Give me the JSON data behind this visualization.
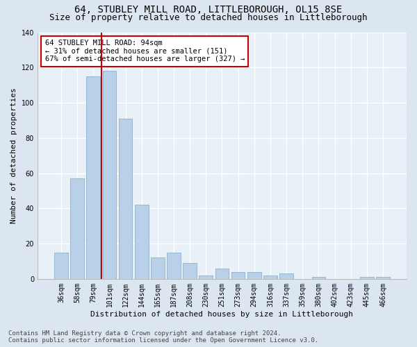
{
  "title": "64, STUBLEY MILL ROAD, LITTLEBOROUGH, OL15 8SE",
  "subtitle": "Size of property relative to detached houses in Littleborough",
  "xlabel": "Distribution of detached houses by size in Littleborough",
  "ylabel": "Number of detached properties",
  "categories": [
    "36sqm",
    "58sqm",
    "79sqm",
    "101sqm",
    "122sqm",
    "144sqm",
    "165sqm",
    "187sqm",
    "208sqm",
    "230sqm",
    "251sqm",
    "273sqm",
    "294sqm",
    "316sqm",
    "337sqm",
    "359sqm",
    "380sqm",
    "402sqm",
    "423sqm",
    "445sqm",
    "466sqm"
  ],
  "values": [
    15,
    57,
    115,
    118,
    91,
    42,
    12,
    15,
    9,
    2,
    6,
    4,
    4,
    2,
    3,
    0,
    1,
    0,
    0,
    1,
    1
  ],
  "bar_color": "#b8d0e8",
  "bar_edge_color": "#8eb0cc",
  "vline_x": 2.5,
  "vline_color": "#cc0000",
  "annotation_text": "64 STUBLEY MILL ROAD: 94sqm\n← 31% of detached houses are smaller (151)\n67% of semi-detached houses are larger (327) →",
  "annotation_box_color": "#ffffff",
  "annotation_box_edge": "#cc0000",
  "bg_color": "#dce6f0",
  "plot_bg_color": "#e8f0f8",
  "grid_color": "#ffffff",
  "footer_line1": "Contains HM Land Registry data © Crown copyright and database right 2024.",
  "footer_line2": "Contains public sector information licensed under the Open Government Licence v3.0.",
  "ylim": [
    0,
    140
  ],
  "yticks": [
    0,
    20,
    40,
    60,
    80,
    100,
    120,
    140
  ],
  "title_fontsize": 10,
  "subtitle_fontsize": 9,
  "axis_label_fontsize": 8,
  "tick_fontsize": 7,
  "annotation_fontsize": 7.5,
  "footer_fontsize": 6.5
}
